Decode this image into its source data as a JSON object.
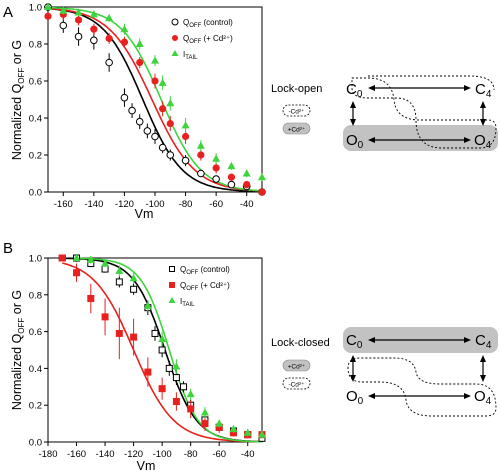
{
  "panels": [
    {
      "label": "A",
      "ylabel_pre": "Normalized Q",
      "ylabel_sub": "OFF",
      "ylabel_post": " or G",
      "xlabel": "Vm",
      "chart_data": {
        "type": "scatter",
        "xlim": [
          -170,
          -30
        ],
        "ylim": [
          0,
          1.0
        ],
        "x_ticks": [
          -160,
          -140,
          -120,
          -100,
          -80,
          -60,
          -40
        ],
        "y_ticks": [
          0.0,
          0.2,
          0.4,
          0.6,
          0.8,
          1.0
        ],
        "series": [
          {
            "legend_main": "Q",
            "legend_sub": "OFF",
            "legend_rest": " (control)",
            "marker": "open-circle",
            "color": "#000000",
            "x": [
              -170,
              -160,
              -150,
              -140,
              -130,
              -120,
              -115,
              -110,
              -105,
              -100,
              -95,
              -90,
              -80,
              -70,
              -60,
              -50,
              -40,
              -30
            ],
            "y": [
              1.0,
              0.9,
              0.84,
              0.82,
              0.7,
              0.51,
              0.44,
              0.38,
              0.33,
              0.3,
              0.24,
              0.2,
              0.17,
              0.1,
              0.07,
              0.04,
              0.03,
              0.0
            ],
            "err": [
              0,
              0.04,
              0.05,
              0.05,
              0.05,
              0.05,
              0.04,
              0.04,
              0.04,
              0.04,
              0.03,
              0.03,
              0.03,
              0.02,
              0.02,
              0.01,
              0.01,
              0
            ],
            "fit": {
              "v_half": -108,
              "k": 13
            }
          },
          {
            "legend_main": "Q",
            "legend_sub": "OFF",
            "legend_rest": " (+ Cd²⁺)",
            "marker": "filled-circle",
            "color": "#e8201e",
            "x": [
              -170,
              -160,
              -150,
              -140,
              -130,
              -120,
              -110,
              -100,
              -95,
              -90,
              -80,
              -70,
              -60,
              -50,
              -40,
              -30
            ],
            "y": [
              0.95,
              0.96,
              0.93,
              0.88,
              0.83,
              0.81,
              0.7,
              0.6,
              0.45,
              0.37,
              0.3,
              0.2,
              0.13,
              0.08,
              0.04,
              0.0
            ],
            "err": [
              0,
              0.03,
              0.03,
              0.03,
              0.03,
              0.03,
              0.03,
              0.04,
              0.04,
              0.04,
              0.04,
              0.03,
              0.03,
              0.02,
              0.02,
              0
            ],
            "fit": {
              "v_half": -102,
              "k": 14
            }
          },
          {
            "legend_main": "I",
            "legend_sub": "TAIL",
            "legend_rest": "",
            "marker": "filled-triangle",
            "color": "#3ed43e",
            "x": [
              -170,
              -160,
              -150,
              -140,
              -130,
              -120,
              -110,
              -100,
              -95,
              -90,
              -80,
              -70,
              -60,
              -50,
              -40,
              -30
            ],
            "y": [
              1.0,
              0.98,
              0.97,
              0.96,
              0.94,
              0.88,
              0.8,
              0.71,
              0.59,
              0.48,
              0.36,
              0.25,
              0.18,
              0.14,
              0.1,
              0.08
            ],
            "err": [
              0,
              0.02,
              0.02,
              0.02,
              0.02,
              0.03,
              0.03,
              0.03,
              0.04,
              0.04,
              0.04,
              0.03,
              0.03,
              0.02,
              0.02,
              0.02
            ],
            "fit": {
              "v_half": -96,
              "k": 13
            }
          }
        ]
      },
      "scheme": {
        "title": "Lock-open",
        "states": [
          "C",
          "C",
          "O",
          "O"
        ],
        "state_subs": [
          "0",
          "4",
          "0",
          "4"
        ],
        "legend_minus": "-Cd²⁺",
        "legend_plus": "+Cd²⁺"
      }
    },
    {
      "label": "B",
      "ylabel_pre": "Normalized Q",
      "ylabel_sub": "OFF",
      "ylabel_post": " or G",
      "xlabel": "Vm",
      "chart_data": {
        "type": "scatter",
        "xlim": [
          -180,
          -30
        ],
        "ylim": [
          0,
          1.0
        ],
        "x_ticks": [
          -180,
          -160,
          -140,
          -120,
          -100,
          -80,
          -60,
          -40
        ],
        "y_ticks": [
          0.0,
          0.2,
          0.4,
          0.6,
          0.8,
          1.0
        ],
        "series": [
          {
            "legend_main": "Q",
            "legend_sub": "OFF",
            "legend_rest": " (control)",
            "marker": "open-square",
            "color": "#000000",
            "x": [
              -170,
              -160,
              -150,
              -140,
              -130,
              -120,
              -110,
              -105,
              -100,
              -95,
              -90,
              -85,
              -80,
              -70,
              -60,
              -50,
              -40,
              -30
            ],
            "y": [
              1.0,
              1.0,
              0.97,
              0.94,
              0.87,
              0.83,
              0.73,
              0.59,
              0.5,
              0.4,
              0.35,
              0.3,
              0.2,
              0.12,
              0.08,
              0.06,
              0.04,
              0.02
            ],
            "err": [
              0,
              0.02,
              0.02,
              0.02,
              0.03,
              0.03,
              0.04,
              0.04,
              0.04,
              0.04,
              0.04,
              0.03,
              0.03,
              0.03,
              0.02,
              0.02,
              0.01,
              0
            ],
            "fit": {
              "v_half": -98,
              "k": 11
            }
          },
          {
            "legend_main": "Q",
            "legend_sub": "OFF",
            "legend_rest": " (+ Cd²⁺)",
            "marker": "filled-square",
            "color": "#e8201e",
            "x": [
              -170,
              -160,
              -150,
              -140,
              -130,
              -120,
              -110,
              -100,
              -90,
              -80,
              -70,
              -60,
              -50,
              -40,
              -30
            ],
            "y": [
              1.0,
              0.92,
              0.78,
              0.68,
              0.59,
              0.57,
              0.38,
              0.29,
              0.22,
              0.18,
              0.1,
              0.08,
              0.05,
              0.04,
              0.04
            ],
            "err": [
              0,
              0.05,
              0.08,
              0.1,
              0.14,
              0.1,
              0.08,
              0.06,
              0.05,
              0.05,
              0.04,
              0.03,
              0.02,
              0.02,
              0.02
            ],
            "fit": {
              "v_half": -120,
              "k": 14
            }
          },
          {
            "legend_main": "I",
            "legend_sub": "TAIL",
            "legend_rest": "",
            "marker": "filled-triangle",
            "color": "#3ed43e",
            "x": [
              -160,
              -150,
              -140,
              -130,
              -120,
              -110,
              -100,
              -90,
              -80,
              -70,
              -60,
              -50,
              -40,
              -30
            ],
            "y": [
              1.0,
              0.99,
              0.97,
              0.93,
              0.89,
              0.74,
              0.56,
              0.41,
              0.26,
              0.16,
              0.1,
              0.07,
              0.05,
              0.04
            ],
            "err": [
              0,
              0.02,
              0.02,
              0.03,
              0.03,
              0.03,
              0.04,
              0.04,
              0.03,
              0.03,
              0.02,
              0.02,
              0.02,
              0.02
            ],
            "fit": {
              "v_half": -95,
              "k": 10
            }
          }
        ]
      },
      "scheme": {
        "title": "Lock-closed",
        "states": [
          "C",
          "C",
          "O",
          "O"
        ],
        "state_subs": [
          "0",
          "4",
          "0",
          "4"
        ],
        "legend_minus": "-Cd²⁺",
        "legend_plus": "+Cd²⁺"
      }
    }
  ]
}
